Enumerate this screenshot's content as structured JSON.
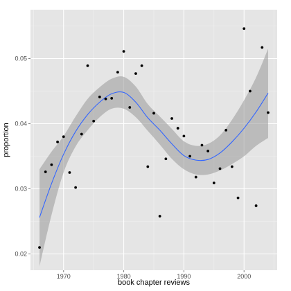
{
  "chart_data": {
    "type": "scatter",
    "xlabel": "book chapter reviews",
    "ylabel": "proportion",
    "xlim": [
      1964.5,
      2005.5
    ],
    "ylim": [
      0.0175,
      0.0575
    ],
    "x_ticks": [
      1970,
      1980,
      1990,
      2000
    ],
    "x_tick_labels": [
      "1970",
      "1980",
      "1990",
      "2000"
    ],
    "y_ticks": [
      0.02,
      0.03,
      0.04,
      0.05
    ],
    "y_tick_labels": [
      "0.02",
      "0.03",
      "0.04",
      "0.05"
    ],
    "grid": true,
    "legend": "none",
    "colors": {
      "panel": "#e5e5e5",
      "grid_major": "#ffffff",
      "grid_minor": "#f2f2f2",
      "points": "#000000",
      "smooth_line": "#3366ff",
      "band": "#999999"
    },
    "points": {
      "x": [
        1966,
        1967,
        1968,
        1969,
        1970,
        1971,
        1972,
        1973,
        1974,
        1975,
        1976,
        1977,
        1978,
        1979,
        1980,
        1981,
        1982,
        1983,
        1984,
        1985,
        1986,
        1987,
        1988,
        1989,
        1990,
        1991,
        1992,
        1993,
        1994,
        1995,
        1996,
        1997,
        1998,
        1999,
        2000,
        2001,
        2002,
        2003,
        2004
      ],
      "y": [
        0.021,
        0.0326,
        0.0337,
        0.0372,
        0.038,
        0.0325,
        0.0302,
        0.0384,
        0.0489,
        0.0404,
        0.0441,
        0.0438,
        0.0439,
        0.0479,
        0.0511,
        0.0425,
        0.0477,
        0.0489,
        0.0334,
        0.0416,
        0.0258,
        0.0346,
        0.0408,
        0.0393,
        0.0381,
        0.035,
        0.0318,
        0.0367,
        0.0358,
        0.0309,
        0.0331,
        0.039,
        0.0334,
        0.0286,
        0.0546,
        0.045,
        0.0274,
        0.0517,
        0.0417
      ]
    },
    "smooth": {
      "x": [
        1966,
        1968,
        1970,
        1972,
        1974,
        1976,
        1978,
        1980,
        1982,
        1984,
        1986,
        1988,
        1990,
        1992,
        1994,
        1996,
        1998,
        2000,
        2002,
        2004
      ],
      "y": [
        0.0256,
        0.0308,
        0.0353,
        0.0388,
        0.0414,
        0.0433,
        0.0446,
        0.0448,
        0.0433,
        0.0409,
        0.039,
        0.0369,
        0.0351,
        0.0344,
        0.0345,
        0.0355,
        0.0372,
        0.0393,
        0.0418,
        0.0447
      ],
      "lower": [
        0.0181,
        0.026,
        0.0325,
        0.0365,
        0.039,
        0.041,
        0.0423,
        0.0423,
        0.041,
        0.0389,
        0.0368,
        0.0346,
        0.033,
        0.0322,
        0.0322,
        0.0328,
        0.0338,
        0.035,
        0.0366,
        0.0378
      ],
      "upper": [
        0.033,
        0.0357,
        0.0381,
        0.0411,
        0.0438,
        0.0456,
        0.0469,
        0.0472,
        0.0457,
        0.043,
        0.0411,
        0.0392,
        0.0373,
        0.0366,
        0.0369,
        0.0382,
        0.0406,
        0.0436,
        0.0471,
        0.0515
      ]
    }
  }
}
